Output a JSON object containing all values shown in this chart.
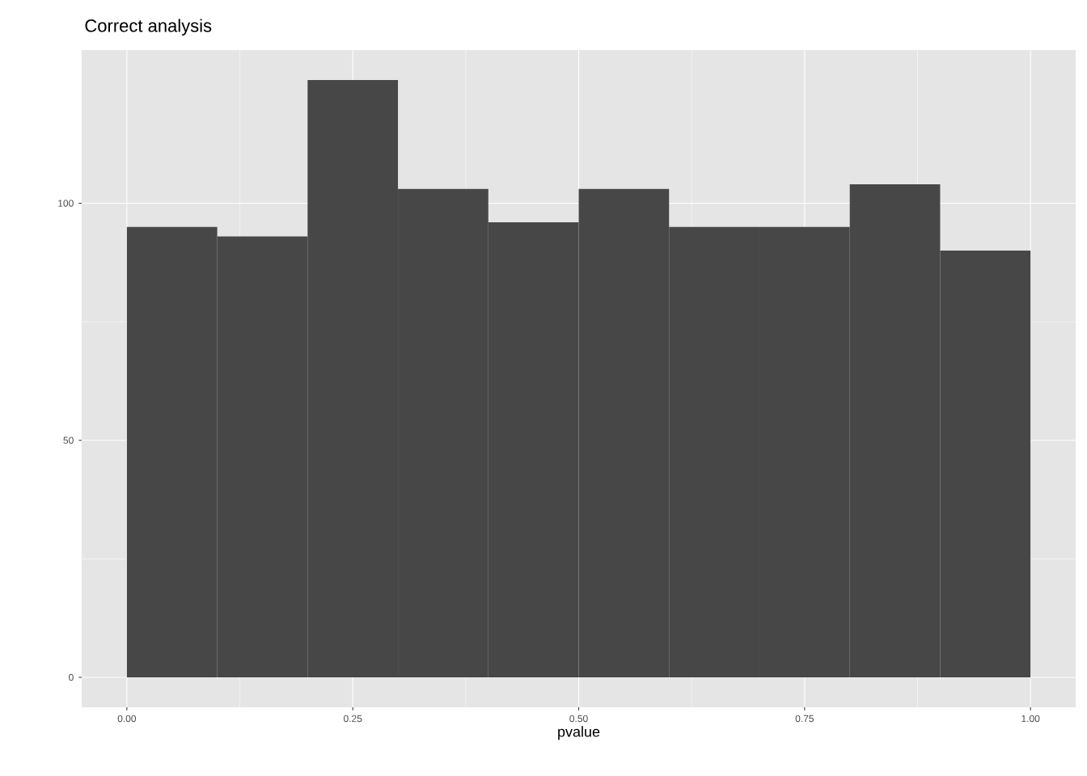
{
  "chart_data": {
    "type": "histogram",
    "title": "Correct analysis",
    "xlabel": "pvalue",
    "bins": [
      0,
      0.1,
      0.2,
      0.3,
      0.4,
      0.5,
      0.6,
      0.7,
      0.8,
      0.9,
      1.0
    ],
    "values": [
      95,
      93,
      126,
      103,
      96,
      103,
      95,
      95,
      104,
      90
    ],
    "color": "#474747",
    "xlim": [
      -0.05,
      1.05
    ],
    "ylim": [
      -6.3,
      132.3
    ],
    "xticks": [
      {
        "value": 0,
        "label": "0.00"
      },
      {
        "value": 0.25,
        "label": "0.25"
      },
      {
        "value": 0.5,
        "label": "0.50"
      },
      {
        "value": 0.75,
        "label": "0.75"
      },
      {
        "value": 1,
        "label": "1.00"
      }
    ],
    "yticks": [
      0,
      50,
      100
    ],
    "grid": true
  }
}
